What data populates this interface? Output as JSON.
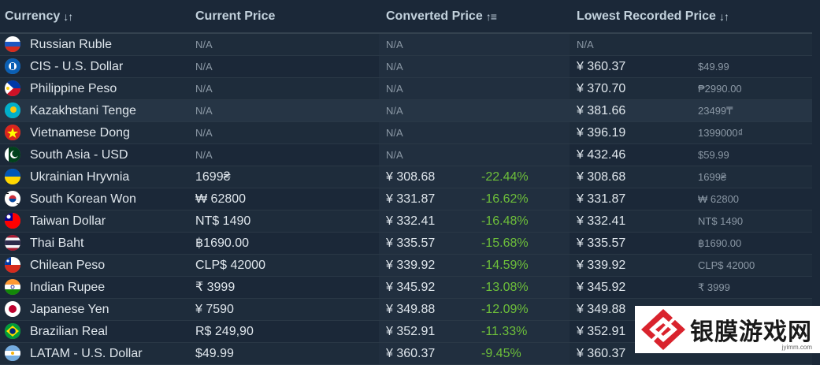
{
  "header": {
    "currency": "Currency",
    "current_price": "Current Price",
    "converted_price": "Converted Price",
    "lowest_recorded_price": "Lowest Recorded Price"
  },
  "rows": [
    {
      "name": "Russian Ruble",
      "current": "N/A",
      "converted": "N/A",
      "pct": "",
      "lowest": "N/A",
      "lowest_orig": "",
      "flag": "russia-flag-icon"
    },
    {
      "name": "CIS - U.S. Dollar",
      "current": "N/A",
      "converted": "N/A",
      "pct": "",
      "lowest": "¥ 360.37",
      "lowest_orig": "$49.99",
      "flag": "cis-flag-icon"
    },
    {
      "name": "Philippine Peso",
      "current": "N/A",
      "converted": "N/A",
      "pct": "",
      "lowest": "¥ 370.70",
      "lowest_orig": "₱2990.00",
      "flag": "philippines-flag-icon"
    },
    {
      "name": "Kazakhstani Tenge",
      "current": "N/A",
      "converted": "N/A",
      "pct": "",
      "lowest": "¥ 381.66",
      "lowest_orig": "23499₸",
      "flag": "kazakhstan-flag-icon"
    },
    {
      "name": "Vietnamese Dong",
      "current": "N/A",
      "converted": "N/A",
      "pct": "",
      "lowest": "¥ 396.19",
      "lowest_orig": "1399000₫",
      "flag": "vietnam-flag-icon"
    },
    {
      "name": "South Asia - USD",
      "current": "N/A",
      "converted": "N/A",
      "pct": "",
      "lowest": "¥ 432.46",
      "lowest_orig": "$59.99",
      "flag": "pakistan-flag-icon"
    },
    {
      "name": "Ukrainian Hryvnia",
      "current": "1699₴",
      "converted": "¥ 308.68",
      "pct": "-22.44%",
      "lowest": "¥ 308.68",
      "lowest_orig": "1699₴",
      "flag": "ukraine-flag-icon"
    },
    {
      "name": "South Korean Won",
      "current": "₩ 62800",
      "converted": "¥ 331.87",
      "pct": "-16.62%",
      "lowest": "¥ 331.87",
      "lowest_orig": "₩ 62800",
      "flag": "south-korea-flag-icon"
    },
    {
      "name": "Taiwan Dollar",
      "current": "NT$ 1490",
      "converted": "¥ 332.41",
      "pct": "-16.48%",
      "lowest": "¥ 332.41",
      "lowest_orig": "NT$ 1490",
      "flag": "taiwan-flag-icon"
    },
    {
      "name": "Thai Baht",
      "current": "฿1690.00",
      "converted": "¥ 335.57",
      "pct": "-15.68%",
      "lowest": "¥ 335.57",
      "lowest_orig": "฿1690.00",
      "flag": "thailand-flag-icon"
    },
    {
      "name": "Chilean Peso",
      "current": "CLP$ 42000",
      "converted": "¥ 339.92",
      "pct": "-14.59%",
      "lowest": "¥ 339.92",
      "lowest_orig": "CLP$ 42000",
      "flag": "chile-flag-icon"
    },
    {
      "name": "Indian Rupee",
      "current": "₹ 3999",
      "converted": "¥ 345.92",
      "pct": "-13.08%",
      "lowest": "¥ 345.92",
      "lowest_orig": "₹ 3999",
      "flag": "india-flag-icon"
    },
    {
      "name": "Japanese Yen",
      "current": "¥ 7590",
      "converted": "¥ 349.88",
      "pct": "-12.09%",
      "lowest": "¥ 349.88",
      "lowest_orig": "¥ 7590",
      "flag": "japan-flag-icon"
    },
    {
      "name": "Brazilian Real",
      "current": "R$ 249,90",
      "converted": "¥ 352.91",
      "pct": "-11.33%",
      "lowest": "¥ 352.91",
      "lowest_orig": "",
      "flag": "brazil-flag-icon"
    },
    {
      "name": "LATAM - U.S. Dollar",
      "current": "$49.99",
      "converted": "¥ 360.37",
      "pct": "-9.45%",
      "lowest": "¥ 360.37",
      "lowest_orig": "",
      "flag": "latam-flag-icon"
    }
  ],
  "watermark": {
    "text": "银膜游戏网",
    "url": "jyimm.com"
  },
  "colors": {
    "background": "#1b2838",
    "positive_discount": "#6dbf3a",
    "muted_text": "#8b98a5"
  }
}
